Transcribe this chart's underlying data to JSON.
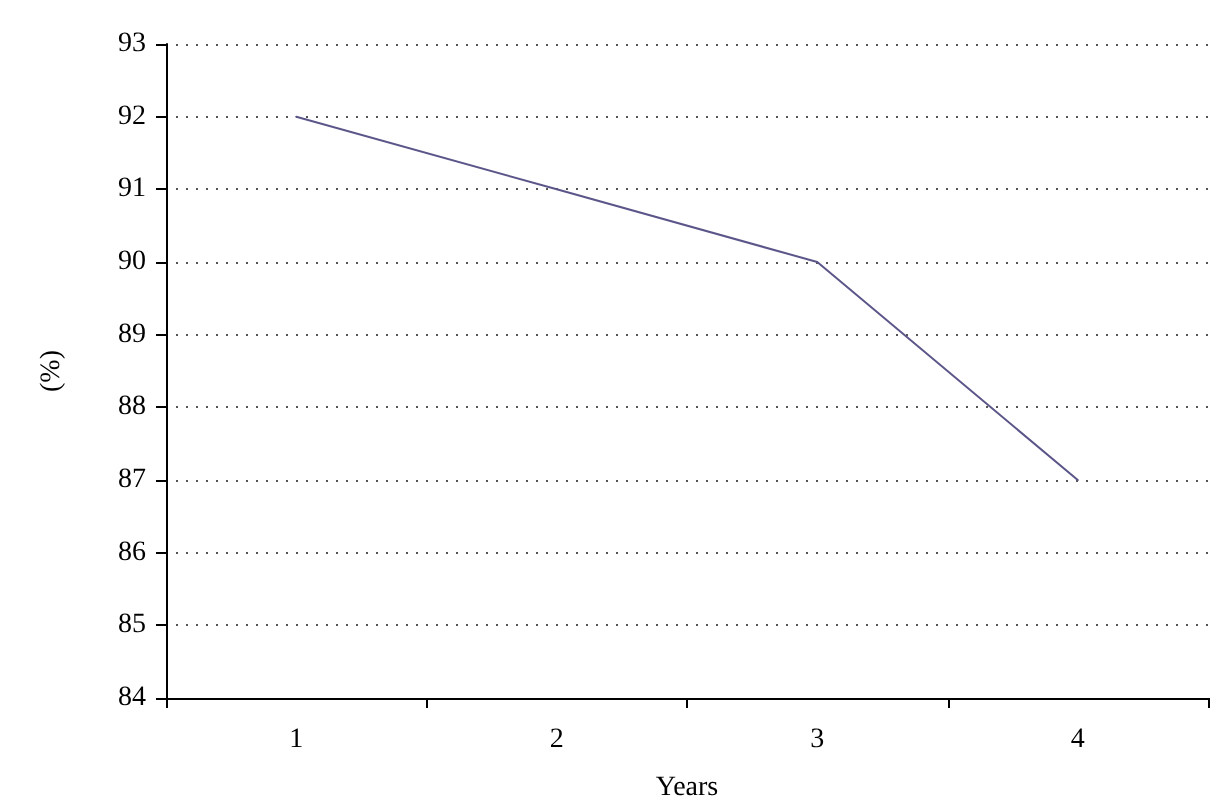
{
  "chart_data": {
    "type": "line",
    "xlabel": "Years",
    "ylabel": "(%)",
    "categories": [
      "1",
      "2",
      "3",
      "4"
    ],
    "series": [
      {
        "color": "#5b5689",
        "values": [
          92,
          91,
          90,
          87
        ]
      }
    ],
    "ylim": [
      84,
      93
    ],
    "yticks": [
      84,
      85,
      86,
      87,
      88,
      89,
      90,
      91,
      92,
      93
    ],
    "grid": "y",
    "marker": "none",
    "line_style": "solid"
  }
}
